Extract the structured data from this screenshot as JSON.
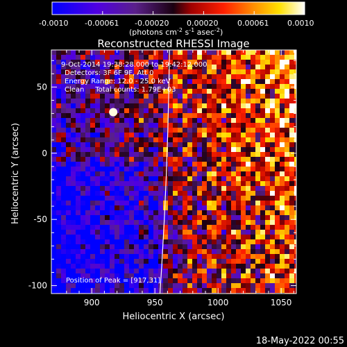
{
  "chart_data": {
    "type": "heatmap",
    "title": "Reconstructed RHESSI Image",
    "xlabel": "Heliocentric X (arcsec)",
    "ylabel": "Heliocentric Y (arcsec)",
    "xlim": [
      868,
      1062
    ],
    "ylim": [
      -106,
      78
    ],
    "x_ticks": [
      "900",
      "950",
      "1000",
      "1050"
    ],
    "x_tick_values": [
      900,
      950,
      1000,
      1050
    ],
    "y_ticks": [
      "50",
      "0",
      "-50",
      "-100"
    ],
    "y_tick_values": [
      50,
      0,
      -50,
      -100
    ],
    "colorbar": {
      "range": [
        -0.001,
        0.001
      ],
      "tick_labels": [
        "-0.0010",
        "-0.00061",
        "-0.00020",
        "0.00020",
        "0.00061",
        "0.0010"
      ],
      "units_label": "(photons cm",
      "units_exp1": "-2",
      "units_mid": " s",
      "units_exp2": "-1",
      "units_mid2": " asec",
      "units_exp3": "-2",
      "units_close": ")",
      "colormap": "blue-purple-black-red-orange-yellow-white"
    },
    "annotations": [
      "9-Oct-2014 19:38:28.000 to 19:42:12.000",
      "Detectors: 3F 6F 9F, Att 0",
      "Energy Range: 12.0 - 25.0 keV",
      "Clean     Total counts: 1.79E+03"
    ],
    "peak_text": "Position of Peak = [917,31]",
    "peak": [
      917,
      31
    ],
    "limb_line_x": 960
  },
  "footer": {
    "timestamp": "18-May-2022 00:55"
  }
}
